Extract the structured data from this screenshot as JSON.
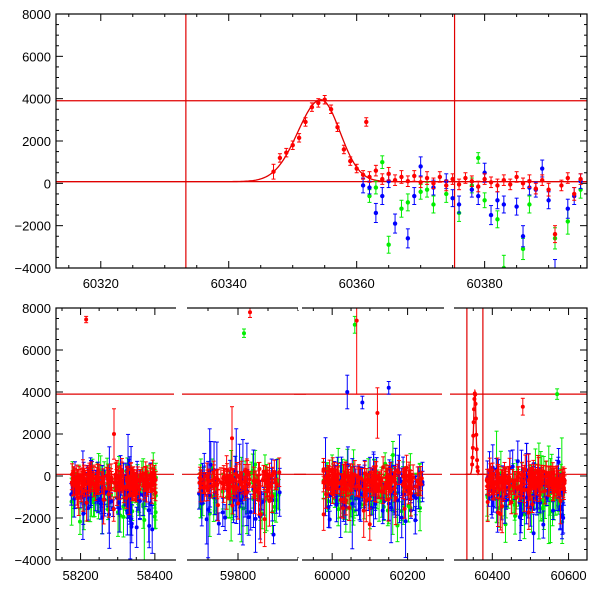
{
  "chart_data": [
    {
      "type": "scatter",
      "title": "",
      "xlabel": "",
      "ylabel": "",
      "xlim": [
        60313,
        60396
      ],
      "ylim": [
        -4000,
        8000
      ],
      "x_ticks": [
        60320,
        60340,
        60360,
        60380
      ],
      "y_ticks": [
        -4000,
        -2000,
        0,
        2000,
        4000,
        6000,
        8000
      ],
      "colors": {
        "red": "#ff0000",
        "green": "#00ee00",
        "blue": "#0000ff",
        "lines": "#e00000"
      },
      "reference_lines": {
        "vertical": [
          60333.3,
          60375.3
        ],
        "horizontal": [
          3900,
          80
        ]
      },
      "model_curve": {
        "baseline": 80,
        "peak": 3950,
        "t_peak": 60354.4,
        "width_before": 3.6,
        "width_after": 3.0
      },
      "series": [
        {
          "color": "red",
          "points": [
            [
              60347,
              550,
              350
            ],
            [
              60348,
              1200,
              200
            ],
            [
              60349,
              1450,
              200
            ],
            [
              60350,
              1800,
              200
            ],
            [
              60351,
              2150,
              200
            ],
            [
              60352,
              2900,
              200
            ],
            [
              60353,
              3600,
              200
            ],
            [
              60354,
              3800,
              200
            ],
            [
              60355,
              3950,
              200
            ],
            [
              60356,
              3500,
              200
            ],
            [
              60357,
              2650,
              200
            ],
            [
              60358,
              1600,
              200
            ],
            [
              60359,
              1050,
              200
            ],
            [
              60360,
              700,
              200
            ],
            [
              60361,
              400,
              200
            ],
            [
              60361.5,
              2900,
              200
            ],
            [
              60362,
              300,
              250
            ],
            [
              60363,
              600,
              250
            ],
            [
              60364,
              200,
              250
            ],
            [
              60365,
              450,
              300
            ],
            [
              60366,
              150,
              250
            ],
            [
              60367,
              300,
              300
            ],
            [
              60368,
              100,
              250
            ],
            [
              60369,
              350,
              250
            ],
            [
              60370,
              50,
              250
            ],
            [
              60371,
              250,
              300
            ],
            [
              60372,
              0,
              250
            ],
            [
              60373,
              300,
              250
            ],
            [
              60374,
              -100,
              250
            ],
            [
              60375,
              200,
              250
            ],
            [
              60376,
              -50,
              250
            ],
            [
              60377,
              250,
              250
            ],
            [
              60378,
              100,
              250
            ],
            [
              60379,
              -150,
              250
            ],
            [
              60380,
              200,
              250
            ],
            [
              60381,
              50,
              250
            ],
            [
              60382,
              -100,
              300
            ],
            [
              60383,
              150,
              250
            ],
            [
              60384,
              -50,
              250
            ],
            [
              60385,
              300,
              250
            ],
            [
              60386,
              0,
              250
            ],
            [
              60387,
              100,
              300
            ],
            [
              60388,
              -250,
              250
            ],
            [
              60389,
              150,
              250
            ],
            [
              60390,
              -300,
              300
            ],
            [
              60391,
              -2400,
              400
            ],
            [
              60392,
              -100,
              250
            ],
            [
              60393,
              250,
              250
            ],
            [
              60394,
              -500,
              300
            ],
            [
              60395,
              200,
              250
            ]
          ]
        },
        {
          "color": "green",
          "points": [
            [
              60362,
              -600,
              300
            ],
            [
              60363,
              -200,
              300
            ],
            [
              60364,
              1000,
              300
            ],
            [
              60365,
              -2900,
              400
            ],
            [
              60367,
              -1200,
              400
            ],
            [
              60368,
              -900,
              400
            ],
            [
              60370,
              -400,
              350
            ],
            [
              60371,
              -300,
              350
            ],
            [
              60372,
              -1000,
              400
            ],
            [
              60374,
              -500,
              400
            ],
            [
              60376,
              -1400,
              400
            ],
            [
              60378,
              -100,
              350
            ],
            [
              60379,
              1200,
              250
            ],
            [
              60380,
              -800,
              350
            ],
            [
              60382,
              -1700,
              400
            ],
            [
              60383,
              -4000,
              600
            ],
            [
              60386,
              -3100,
              500
            ],
            [
              60387,
              -1000,
              400
            ],
            [
              60391,
              -2600,
              500
            ],
            [
              60393,
              -1800,
              600
            ],
            [
              60395,
              -300,
              400
            ]
          ]
        },
        {
          "color": "blue",
          "points": [
            [
              60361,
              -100,
              350
            ],
            [
              60362,
              -200,
              300
            ],
            [
              60363,
              -1400,
              450
            ],
            [
              60364,
              -600,
              400
            ],
            [
              60365,
              100,
              300
            ],
            [
              60366,
              -1900,
              450
            ],
            [
              60368,
              -2600,
              450
            ],
            [
              60369,
              -600,
              400
            ],
            [
              60370,
              800,
              450
            ],
            [
              60372,
              -200,
              350
            ],
            [
              60374,
              100,
              350
            ],
            [
              60375,
              -700,
              400
            ],
            [
              60376,
              -1000,
              400
            ],
            [
              60378,
              -300,
              350
            ],
            [
              60379,
              -600,
              400
            ],
            [
              60380,
              500,
              450
            ],
            [
              60381,
              -1500,
              450
            ],
            [
              60382,
              -800,
              400
            ],
            [
              60383,
              -1000,
              400
            ],
            [
              60385,
              -1100,
              400
            ],
            [
              60386,
              -2500,
              500
            ],
            [
              60387,
              -200,
              350
            ],
            [
              60388,
              -300,
              350
            ],
            [
              60389,
              700,
              400
            ],
            [
              60390,
              -800,
              400
            ],
            [
              60391,
              -4200,
              600
            ],
            [
              60393,
              -1200,
              450
            ],
            [
              60394,
              -600,
              400
            ],
            [
              60395,
              100,
              350
            ]
          ]
        }
      ]
    },
    {
      "type": "scatter",
      "title": "",
      "xlabel": "",
      "ylabel": "",
      "ylim": [
        -4000,
        8000
      ],
      "y_ticks": [
        -4000,
        -2000,
        0,
        2000,
        4000,
        6000,
        8000
      ],
      "x_segments": [
        {
          "xlim": [
            58150,
            58430
          ],
          "ticks": [
            58200,
            58400
          ]
        },
        {
          "xlim": [
            59720,
            59900
          ],
          "ticks": [
            59800
          ]
        },
        {
          "xlim": [
            59920,
            60270
          ],
          "ticks": [
            60000,
            60200
          ]
        },
        {
          "xlim": [
            60310,
            60630
          ],
          "ticks": [
            60400,
            60600
          ]
        }
      ],
      "reference_lines": {
        "vertical": [
          60333.3,
          60375.3
        ],
        "horizontal": [
          3900,
          80
        ]
      },
      "seasons": [
        {
          "start": 58175,
          "end": 58405,
          "n": 160
        },
        {
          "start": 59735,
          "end": 59870,
          "n": 110
        },
        {
          "start": 59975,
          "end": 60240,
          "n": 170
        },
        {
          "start": 60385,
          "end": 60590,
          "n": 150
        }
      ],
      "model_curve": {
        "baseline": 80,
        "peak": 3950,
        "t_peak": 60354.4,
        "width_before": 3.6,
        "width_after": 3.0
      },
      "outliers": [
        {
          "color": "red",
          "x": 58215,
          "y": 7450,
          "e": 150
        },
        {
          "color": "red",
          "x": 59820,
          "y": 7800,
          "e": 250
        },
        {
          "color": "green",
          "x": 59810,
          "y": 6800,
          "e": 200
        },
        {
          "color": "green",
          "x": 60060,
          "y": 7200,
          "e": 400
        },
        {
          "color": "red",
          "x": 60065,
          "y": 7400,
          "e": 3500
        },
        {
          "color": "blue",
          "x": 60040,
          "y": 4000,
          "e": 800
        },
        {
          "color": "blue",
          "x": 60080,
          "y": 3500,
          "e": 300
        },
        {
          "color": "blue",
          "x": 60150,
          "y": 4200,
          "e": 300
        },
        {
          "color": "red",
          "x": 60120,
          "y": 3000,
          "e": 1200
        },
        {
          "color": "red",
          "x": 60480,
          "y": 3300,
          "e": 400
        },
        {
          "color": "green",
          "x": 60570,
          "y": 3900,
          "e": 250
        },
        {
          "color": "red",
          "x": 58290,
          "y": 2000,
          "e": 1200
        },
        {
          "color": "red",
          "x": 59790,
          "y": 1800,
          "e": 1500
        }
      ]
    }
  ]
}
